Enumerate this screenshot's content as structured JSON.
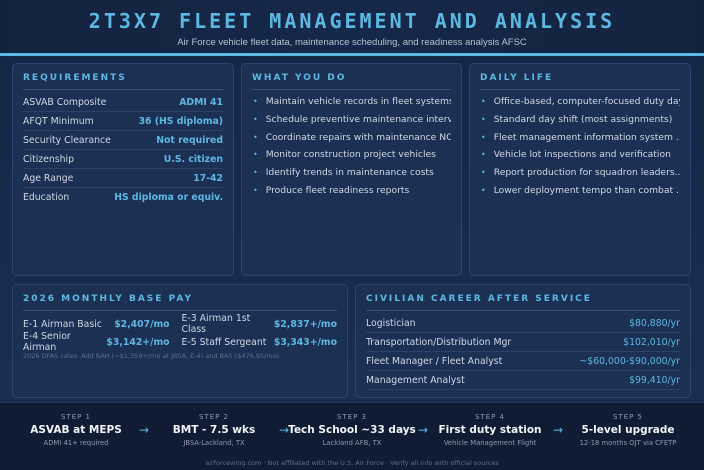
{
  "header": {
    "title": "2T3X7 FLEET MANAGEMENT AND ANALYSIS",
    "subtitle": "Air Force vehicle fleet data, maintenance scheduling, and readiness analysis AFSC"
  },
  "requirements": {
    "title": "REQUIREMENTS",
    "rows": [
      {
        "label": "ASVAB Composite",
        "value": "ADMI 41"
      },
      {
        "label": "AFQT Minimum",
        "value": "36 (HS diploma)"
      },
      {
        "label": "Security Clearance",
        "value": "Not required"
      },
      {
        "label": "Citizenship",
        "value": "U.S. citizen"
      },
      {
        "label": "Age Range",
        "value": "17-42"
      },
      {
        "label": "Education",
        "value": "HS diploma or equiv."
      }
    ]
  },
  "what_you_do": {
    "title": "WHAT YOU DO",
    "items": [
      "Maintain vehicle records in fleet systems",
      "Schedule preventive maintenance interv...",
      "Coordinate repairs with maintenance NC...",
      "Monitor construction project vehicles",
      "Identify trends in maintenance costs",
      "Produce fleet readiness reports"
    ]
  },
  "daily_life": {
    "title": "DAILY LIFE",
    "items": [
      "Office-based, computer-focused duty day",
      "Standard day shift (most assignments)",
      "Fleet management information system ...",
      "Vehicle lot inspections and verification",
      "Report production for squadron leaders...",
      "Lower deployment tempo than combat ..."
    ]
  },
  "pay": {
    "title": "2026 MONTHLY BASE PAY",
    "rows": [
      {
        "label": "E-1 Airman Basic",
        "value": "$2,407/mo"
      },
      {
        "label": "E-3 Airman 1st Class",
        "value": "$2,837+/mo"
      },
      {
        "label": "E-4 Senior Airman",
        "value": "$3,142+/mo"
      },
      {
        "label": "E-5 Staff Sergeant",
        "value": "$3,343+/mo"
      }
    ],
    "note": "2026 DFAS rates. Add BAH (~$1,359+/mo at JBSA, E-4) and BAS ($476.95/mo)."
  },
  "civilian": {
    "title": "CIVILIAN CAREER AFTER SERVICE",
    "rows": [
      {
        "label": "Logistician",
        "value": "$80,880/yr"
      },
      {
        "label": "Transportation/Distribution Mgr",
        "value": "$102,010/yr"
      },
      {
        "label": "Fleet Manager / Fleet Analyst",
        "value": "~$60,000-$90,000/yr"
      },
      {
        "label": "Management Analyst",
        "value": "$99,410/yr"
      }
    ]
  },
  "steps": [
    {
      "num": "STEP 1",
      "title": "ASVAB at MEPS",
      "sub": "ADMI 41+ required"
    },
    {
      "num": "STEP 2",
      "title": "BMT - 7.5 wks",
      "sub": "JBSA-Lackland, TX"
    },
    {
      "num": "STEP 3",
      "title": "Tech School ~33 days",
      "sub": "Lackland AFB, TX"
    },
    {
      "num": "STEP 4",
      "title": "First duty station",
      "sub": "Vehicle Management Flight"
    },
    {
      "num": "STEP 5",
      "title": "5-level upgrade",
      "sub": "12-18 months OJT via CFETP"
    }
  ],
  "arrow": "→",
  "bullet": "•",
  "footer": "airforcewing.com · Not affiliated with the U.S. Air Force · Verify all info with official sources",
  "colors": {
    "accent": "#5cb8e0",
    "background": "#12213d",
    "card": "#1c3054"
  }
}
